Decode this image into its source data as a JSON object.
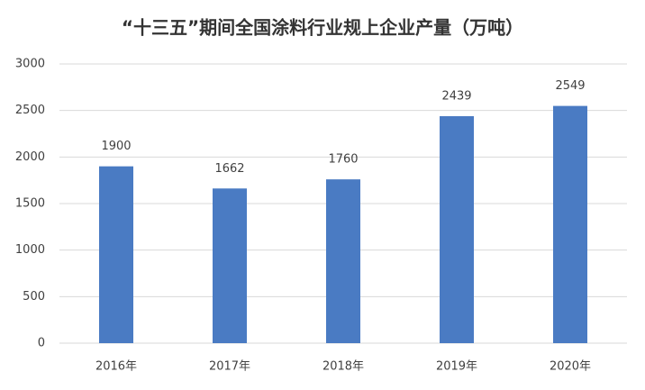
{
  "chart_data": {
    "type": "bar",
    "title": "“十三五”期间全国涂料行业规上企业产量（万吨）",
    "categories": [
      "2016年",
      "2017年",
      "2018年",
      "2019年",
      "2020年"
    ],
    "values": [
      1900,
      1662,
      1760,
      2439,
      2549
    ],
    "color": "#4a7bc3",
    "ylim": [
      0,
      3000
    ],
    "yticks": [
      0,
      500,
      1000,
      1500,
      2000,
      2500,
      3000
    ],
    "grid": true
  }
}
